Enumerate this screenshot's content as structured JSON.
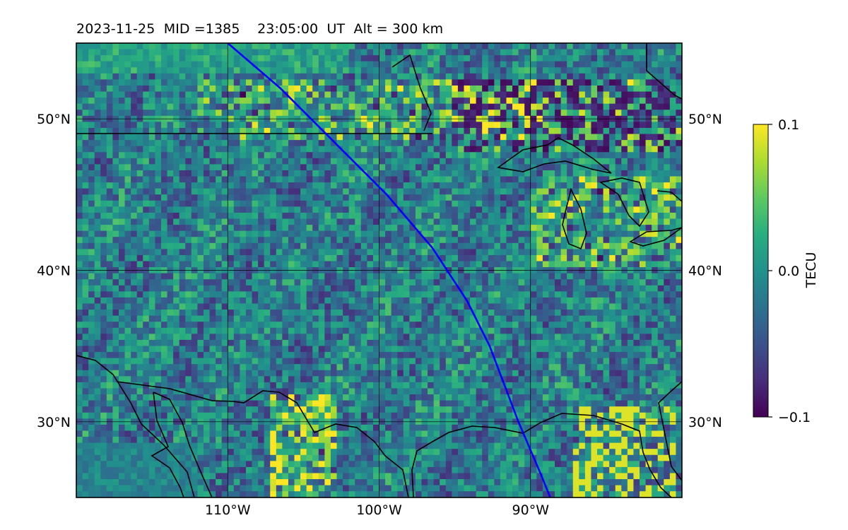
{
  "title": {
    "date": "2023-11-25",
    "mid_label": "MID =1385",
    "time": "23:05:00",
    "time_unit": "UT",
    "altitude": "Alt = 300 km"
  },
  "map": {
    "type": "heatmap",
    "quantity": "TECU",
    "lon_range": [
      -120,
      -80
    ],
    "lat_range": [
      25,
      55
    ],
    "grid": true,
    "lon_ticks": [
      -110,
      -100,
      -90
    ],
    "lat_ticks": [
      30,
      40,
      50
    ],
    "lon_tick_labels": [
      "110°W",
      "100°W",
      "90°W"
    ],
    "lat_tick_labels": [
      "30°N",
      "40°N",
      "50°N"
    ],
    "colorscale": "viridis",
    "color_range": [
      -0.1,
      0.1
    ],
    "track_color": "#0000ff",
    "coast_color": "#000000",
    "satellite_track": [
      [
        -110.0,
        55.0
      ],
      [
        -106.5,
        52.0
      ],
      [
        -103.5,
        49.0
      ],
      [
        -99.5,
        45.0
      ],
      [
        -96.5,
        41.5
      ],
      [
        -94.2,
        38.0
      ],
      [
        -92.7,
        35.0
      ],
      [
        -90.8,
        30.0
      ],
      [
        -89.3,
        26.5
      ],
      [
        -88.7,
        25.0
      ]
    ]
  },
  "colorbar": {
    "label": "TECU",
    "ticks": [
      0.1,
      0.0,
      -0.1
    ],
    "tick_labels": [
      "0.1",
      "0.0",
      "−0.1"
    ]
  }
}
